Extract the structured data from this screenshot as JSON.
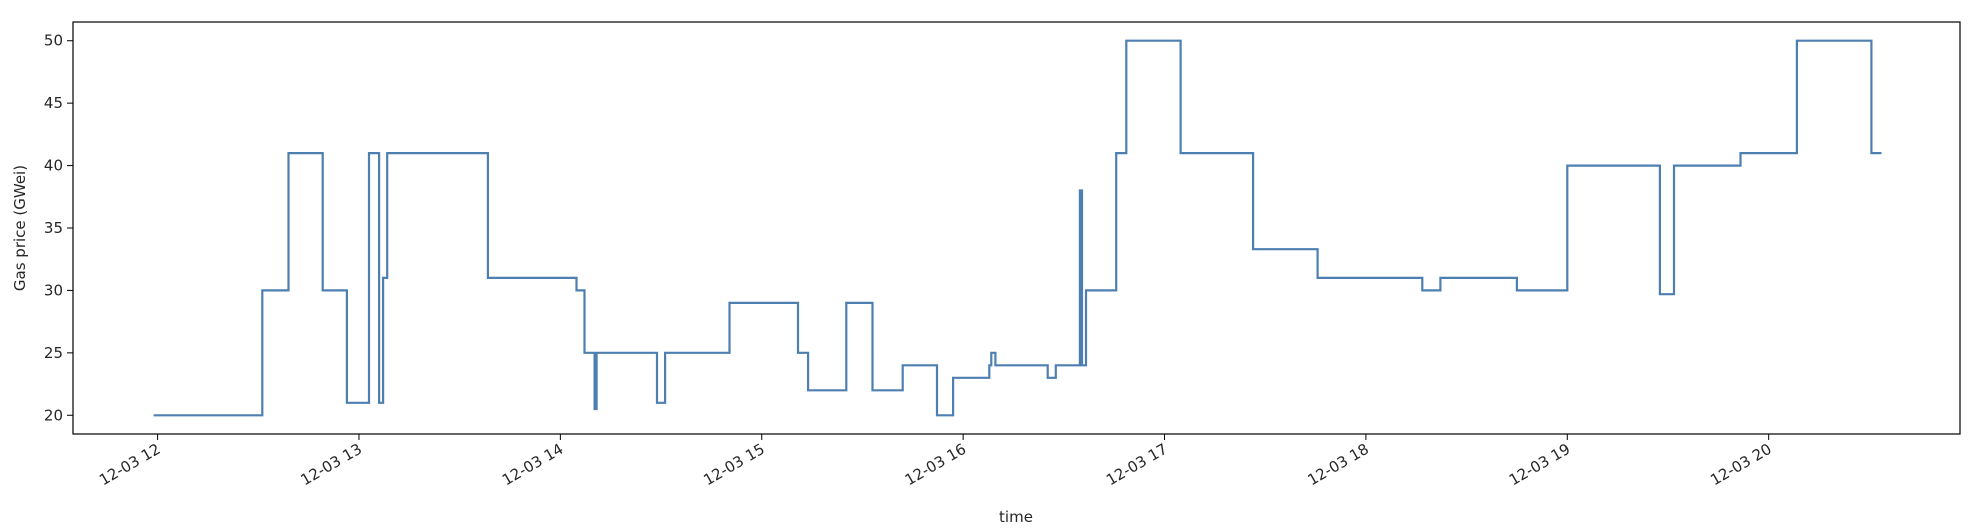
{
  "chart_data": {
    "type": "line",
    "title": "",
    "xlabel": "time",
    "ylabel": "Gas price (GWei)",
    "x_unit": "hours",
    "xlim": [
      11.58,
      20.95
    ],
    "ylim": [
      18.5,
      51.5
    ],
    "grid": false,
    "legend": "none",
    "line_color": "#4e7fb1",
    "xticks": [
      {
        "value": 12,
        "label": "12-03 12"
      },
      {
        "value": 13,
        "label": "12-03 13"
      },
      {
        "value": 14,
        "label": "12-03 14"
      },
      {
        "value": 15,
        "label": "12-03 15"
      },
      {
        "value": 16,
        "label": "12-03 16"
      },
      {
        "value": 17,
        "label": "12-03 17"
      },
      {
        "value": 18,
        "label": "12-03 18"
      },
      {
        "value": 19,
        "label": "12-03 19"
      },
      {
        "value": 20,
        "label": "12-03 20"
      }
    ],
    "yticks": [
      {
        "value": 20,
        "label": "20"
      },
      {
        "value": 25,
        "label": "25"
      },
      {
        "value": 30,
        "label": "30"
      },
      {
        "value": 35,
        "label": "35"
      },
      {
        "value": 40,
        "label": "40"
      },
      {
        "value": 45,
        "label": "45"
      },
      {
        "value": 50,
        "label": "50"
      }
    ],
    "series": [
      {
        "steps": [
          [
            11.98,
            20
          ],
          [
            12.52,
            30
          ],
          [
            12.65,
            41
          ],
          [
            12.82,
            30
          ],
          [
            12.94,
            21
          ],
          [
            13.05,
            41
          ],
          [
            13.1,
            21
          ],
          [
            13.12,
            31
          ],
          [
            13.14,
            41
          ],
          [
            13.64,
            31
          ],
          [
            14.08,
            30
          ],
          [
            14.12,
            25
          ],
          [
            14.17,
            20.5
          ],
          [
            14.18,
            25
          ],
          [
            14.48,
            21
          ],
          [
            14.52,
            25
          ],
          [
            14.84,
            29
          ],
          [
            15.18,
            25
          ],
          [
            15.23,
            22
          ],
          [
            15.42,
            29
          ],
          [
            15.55,
            22
          ],
          [
            15.7,
            24
          ],
          [
            15.87,
            20
          ],
          [
            15.95,
            23
          ],
          [
            16.13,
            24
          ],
          [
            16.14,
            25
          ],
          [
            16.16,
            24
          ],
          [
            16.42,
            23
          ],
          [
            16.46,
            24
          ],
          [
            16.58,
            38
          ],
          [
            16.59,
            24
          ],
          [
            16.61,
            30
          ],
          [
            16.76,
            41
          ],
          [
            16.81,
            50
          ],
          [
            17.08,
            41
          ],
          [
            17.44,
            33.3
          ],
          [
            17.76,
            31
          ],
          [
            18.28,
            30
          ],
          [
            18.37,
            31
          ],
          [
            18.75,
            30
          ],
          [
            19.0,
            40
          ],
          [
            19.46,
            29.7
          ],
          [
            19.53,
            40
          ],
          [
            19.86,
            41
          ],
          [
            20.14,
            50
          ],
          [
            20.51,
            41
          ],
          [
            20.56,
            41
          ]
        ]
      }
    ]
  }
}
